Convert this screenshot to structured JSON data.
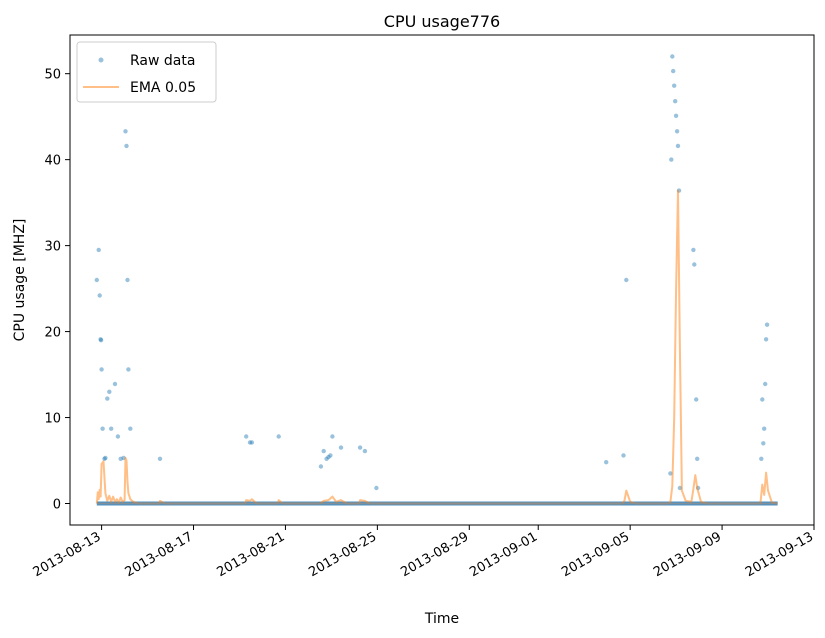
{
  "chart_data": {
    "type": "line",
    "title": "CPU usage776",
    "xlabel": "Time",
    "ylabel": "CPU usage [MHZ]",
    "x_axis": "date",
    "xlim": [
      "2013-08-11T15:00",
      "2013-09-13T00:00"
    ],
    "ylim": [
      -2.5,
      54.5
    ],
    "x_ticks": [
      "2013-08-13",
      "2013-08-17",
      "2013-08-21",
      "2013-08-25",
      "2013-08-29",
      "2013-09-01",
      "2013-09-05",
      "2013-09-09",
      "2013-09-13"
    ],
    "y_ticks": [
      0,
      10,
      20,
      30,
      40,
      50
    ],
    "grid": false,
    "legend_position": "top-left",
    "colors": {
      "raw": "#1f77b4",
      "ema": "#ff7f0e"
    },
    "baseline": {
      "value": 0,
      "start": "2013-08-12T19:00",
      "end": "2013-09-11T10:00"
    },
    "series": [
      {
        "name": "Raw data",
        "style": "points",
        "points": [
          [
            "2013-08-12T19:00",
            26.0
          ],
          [
            "2013-08-12T21:00",
            29.5
          ],
          [
            "2013-08-12T22:00",
            24.2
          ],
          [
            "2013-08-12T23:00",
            19.1
          ],
          [
            "2013-08-12T23:30",
            19.0
          ],
          [
            "2013-08-13T00:00",
            15.6
          ],
          [
            "2013-08-13T01:00",
            8.7
          ],
          [
            "2013-08-13T03:00",
            5.2
          ],
          [
            "2013-08-13T04:00",
            5.3
          ],
          [
            "2013-08-13T06:00",
            12.2
          ],
          [
            "2013-08-13T08:00",
            13.0
          ],
          [
            "2013-08-13T10:00",
            8.7
          ],
          [
            "2013-08-13T14:00",
            13.9
          ],
          [
            "2013-08-13T17:00",
            7.8
          ],
          [
            "2013-08-13T20:00",
            5.2
          ],
          [
            "2013-08-13T23:00",
            5.3
          ],
          [
            "2013-08-14T01:00",
            43.3
          ],
          [
            "2013-08-14T02:00",
            41.6
          ],
          [
            "2013-08-14T03:00",
            26.0
          ],
          [
            "2013-08-14T04:00",
            15.6
          ],
          [
            "2013-08-14T06:00",
            8.7
          ],
          [
            "2013-08-15T13:00",
            5.2
          ],
          [
            "2013-08-19T07:00",
            7.8
          ],
          [
            "2013-08-19T11:00",
            7.1
          ],
          [
            "2013-08-19T13:00",
            7.1
          ],
          [
            "2013-08-20T17:00",
            7.8
          ],
          [
            "2013-08-22T13:00",
            4.3
          ],
          [
            "2013-08-22T16:00",
            6.1
          ],
          [
            "2013-08-22T19:00",
            5.2
          ],
          [
            "2013-08-22T21:00",
            5.4
          ],
          [
            "2013-08-22T23:00",
            5.6
          ],
          [
            "2013-08-23T01:00",
            7.8
          ],
          [
            "2013-08-23T10:00",
            6.5
          ],
          [
            "2013-08-24T06:00",
            6.5
          ],
          [
            "2013-08-24T11:00",
            6.1
          ],
          [
            "2013-08-24T23:00",
            1.8
          ],
          [
            "2013-09-03T23:00",
            4.8
          ],
          [
            "2013-09-04T17:00",
            5.6
          ],
          [
            "2013-09-04T20:00",
            26.0
          ],
          [
            "2013-09-06T18:00",
            3.5
          ],
          [
            "2013-09-06T20:00",
            52.0
          ],
          [
            "2013-09-06T21:00",
            50.3
          ],
          [
            "2013-09-06T22:00",
            48.6
          ],
          [
            "2013-09-06T23:00",
            46.8
          ],
          [
            "2013-09-07T00:00",
            45.1
          ],
          [
            "2013-09-07T01:00",
            43.3
          ],
          [
            "2013-09-07T02:00",
            41.6
          ],
          [
            "2013-09-06T19:00",
            40.0
          ],
          [
            "2013-09-07T03:00",
            36.4
          ],
          [
            "2013-09-07T04:00",
            1.8
          ],
          [
            "2013-09-07T18:00",
            29.5
          ],
          [
            "2013-09-07T19:00",
            27.8
          ],
          [
            "2013-09-07T21:00",
            12.1
          ],
          [
            "2013-09-07T22:00",
            5.2
          ],
          [
            "2013-09-07T23:00",
            1.8
          ],
          [
            "2013-09-10T17:00",
            5.2
          ],
          [
            "2013-09-10T18:00",
            12.1
          ],
          [
            "2013-09-10T19:00",
            7.0
          ],
          [
            "2013-09-10T20:00",
            8.7
          ],
          [
            "2013-09-10T21:00",
            13.9
          ],
          [
            "2013-09-10T22:00",
            19.1
          ],
          [
            "2013-09-10T23:00",
            20.8
          ]
        ]
      },
      {
        "name": "EMA 0.05",
        "style": "line",
        "points": [
          [
            "2013-08-12T19:00",
            0.0
          ],
          [
            "2013-08-12T20:00",
            1.3
          ],
          [
            "2013-08-12T21:00",
            0.5
          ],
          [
            "2013-08-12T22:00",
            1.6
          ],
          [
            "2013-08-12T23:00",
            0.8
          ],
          [
            "2013-08-13T00:00",
            4.6
          ],
          [
            "2013-08-13T02:00",
            4.9
          ],
          [
            "2013-08-13T04:00",
            1.2
          ],
          [
            "2013-08-13T06:00",
            0.3
          ],
          [
            "2013-08-13T08:00",
            0.9
          ],
          [
            "2013-08-13T10:00",
            0.2
          ],
          [
            "2013-08-13T12:00",
            0.8
          ],
          [
            "2013-08-13T14:00",
            0.2
          ],
          [
            "2013-08-13T16:00",
            0.5
          ],
          [
            "2013-08-13T18:00",
            0.1
          ],
          [
            "2013-08-13T20:00",
            0.7
          ],
          [
            "2013-08-13T22:00",
            0.2
          ],
          [
            "2013-08-14T00:00",
            0.4
          ],
          [
            "2013-08-14T01:00",
            5.3
          ],
          [
            "2013-08-14T02:00",
            5.0
          ],
          [
            "2013-08-14T03:00",
            2.5
          ],
          [
            "2013-08-14T04:00",
            1.2
          ],
          [
            "2013-08-14T06:00",
            0.5
          ],
          [
            "2013-08-14T09:00",
            0.2
          ],
          [
            "2013-08-14T14:00",
            0.0
          ],
          [
            "2013-08-15T12:00",
            0.0
          ],
          [
            "2013-08-15T13:00",
            0.3
          ],
          [
            "2013-08-15T18:00",
            0.0
          ],
          [
            "2013-08-19T06:00",
            0.0
          ],
          [
            "2013-08-19T07:00",
            0.4
          ],
          [
            "2013-08-19T11:00",
            0.3
          ],
          [
            "2013-08-19T13:00",
            0.5
          ],
          [
            "2013-08-19T18:00",
            0.0
          ],
          [
            "2013-08-20T16:00",
            0.0
          ],
          [
            "2013-08-20T17:00",
            0.4
          ],
          [
            "2013-08-20T21:00",
            0.0
          ],
          [
            "2013-08-22T12:00",
            0.0
          ],
          [
            "2013-08-22T16:00",
            0.3
          ],
          [
            "2013-08-22T21:00",
            0.4
          ],
          [
            "2013-08-23T01:00",
            0.8
          ],
          [
            "2013-08-23T05:00",
            0.2
          ],
          [
            "2013-08-23T10:00",
            0.4
          ],
          [
            "2013-08-23T16:00",
            0.0
          ],
          [
            "2013-08-24T05:00",
            0.0
          ],
          [
            "2013-08-24T06:00",
            0.4
          ],
          [
            "2013-08-24T11:00",
            0.3
          ],
          [
            "2013-08-24T16:00",
            0.0
          ],
          [
            "2013-09-04T16:00",
            0.0
          ],
          [
            "2013-09-04T18:00",
            0.3
          ],
          [
            "2013-09-04T20:00",
            1.5
          ],
          [
            "2013-09-05T00:00",
            0.2
          ],
          [
            "2013-09-05T06:00",
            0.0
          ],
          [
            "2013-09-06T16:00",
            0.0
          ],
          [
            "2013-09-06T18:00",
            0.2
          ],
          [
            "2013-09-06T20:00",
            2.0
          ],
          [
            "2013-09-06T22:00",
            10.0
          ],
          [
            "2013-09-07T00:00",
            25.0
          ],
          [
            "2013-09-07T02:00",
            36.4
          ],
          [
            "2013-09-07T04:00",
            18.0
          ],
          [
            "2013-09-07T06:00",
            1.5
          ],
          [
            "2013-09-07T10:00",
            0.3
          ],
          [
            "2013-09-07T16:00",
            0.2
          ],
          [
            "2013-09-07T18:00",
            1.7
          ],
          [
            "2013-09-07T20:00",
            3.3
          ],
          [
            "2013-09-07T22:00",
            1.8
          ],
          [
            "2013-09-08T02:00",
            0.2
          ],
          [
            "2013-09-08T08:00",
            0.0
          ],
          [
            "2013-09-10T16:00",
            0.0
          ],
          [
            "2013-09-10T18:00",
            2.2
          ],
          [
            "2013-09-10T20:00",
            1.0
          ],
          [
            "2013-09-10T22:00",
            3.6
          ],
          [
            "2013-09-11T00:00",
            1.5
          ],
          [
            "2013-09-11T04:00",
            0.1
          ],
          [
            "2013-09-11T10:00",
            0.0
          ]
        ]
      }
    ]
  }
}
